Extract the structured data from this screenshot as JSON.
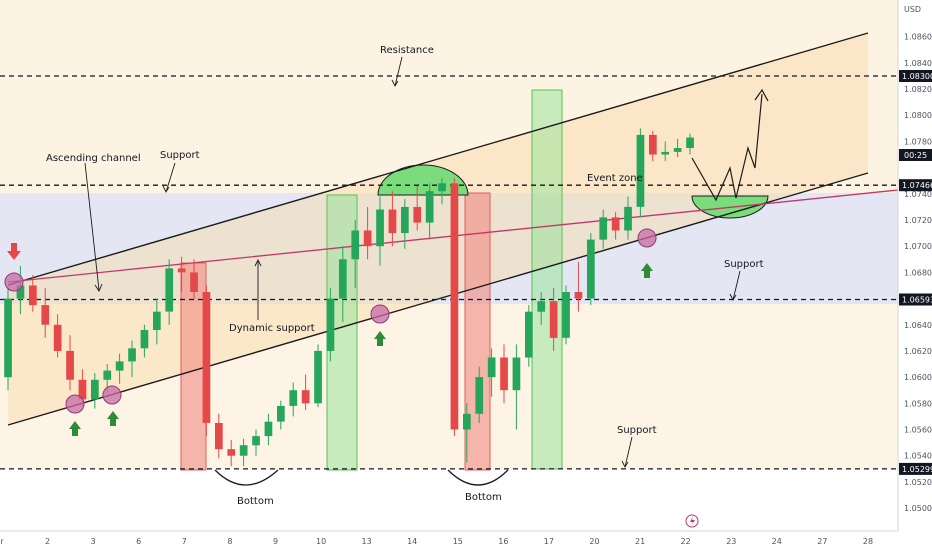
{
  "currency": "USD",
  "chart_data": {
    "type": "candlestick",
    "symbol_unit": "USD",
    "x_ticks": [
      "r",
      "2",
      "3",
      "6",
      "7",
      "8",
      "9",
      "10",
      "13",
      "14",
      "15",
      "16",
      "17",
      "20",
      "21",
      "22",
      "23",
      "24",
      "27",
      "28"
    ],
    "y_ticks": [
      "1.08600",
      "1.08400",
      "1.08200",
      "1.08000",
      "1.07800",
      "1.07400",
      "1.07200",
      "1.07000",
      "1.06800",
      "1.06400",
      "1.06200",
      "1.06000",
      "1.05800",
      "1.05600",
      "1.05400",
      "1.05200",
      "1.05000"
    ],
    "price_range": [
      1.04825,
      1.0888
    ],
    "key_levels": [
      {
        "price": 1.083,
        "label": "1.08300"
      },
      {
        "price": 1.07466,
        "label": "1.07466"
      },
      {
        "price": 1.06593,
        "label": "1.06593"
      },
      {
        "price": 1.05299,
        "label": "1.05299"
      }
    ],
    "current_price_label": "00:25",
    "current_price": 1.0769,
    "annotations": [
      "Resistance",
      "Support",
      "Ascending channel",
      "Event zone",
      "Support",
      "Dynamic support",
      "Support",
      "Bottom",
      "Bottom"
    ],
    "candles": [
      {
        "o": 1.06,
        "h": 1.0668,
        "l": 1.059,
        "c": 1.066
      },
      {
        "o": 1.066,
        "h": 1.0685,
        "l": 1.0648,
        "c": 1.067
      },
      {
        "o": 1.067,
        "h": 1.0678,
        "l": 1.065,
        "c": 1.0655
      },
      {
        "o": 1.0655,
        "h": 1.0668,
        "l": 1.063,
        "c": 1.064
      },
      {
        "o": 1.064,
        "h": 1.0648,
        "l": 1.0615,
        "c": 1.062
      },
      {
        "o": 1.062,
        "h": 1.0632,
        "l": 1.059,
        "c": 1.0598
      },
      {
        "o": 1.0598,
        "h": 1.0606,
        "l": 1.0578,
        "c": 1.0583
      },
      {
        "o": 1.0583,
        "h": 1.0603,
        "l": 1.0576,
        "c": 1.0598
      },
      {
        "o": 1.0598,
        "h": 1.061,
        "l": 1.0588,
        "c": 1.0605
      },
      {
        "o": 1.0605,
        "h": 1.0618,
        "l": 1.0595,
        "c": 1.0612
      },
      {
        "o": 1.0612,
        "h": 1.0628,
        "l": 1.06,
        "c": 1.0622
      },
      {
        "o": 1.0622,
        "h": 1.064,
        "l": 1.0615,
        "c": 1.0636
      },
      {
        "o": 1.0636,
        "h": 1.066,
        "l": 1.0625,
        "c": 1.065
      },
      {
        "o": 1.065,
        "h": 1.069,
        "l": 1.064,
        "c": 1.0683
      },
      {
        "o": 1.0683,
        "h": 1.0692,
        "l": 1.0665,
        "c": 1.068
      },
      {
        "o": 1.068,
        "h": 1.069,
        "l": 1.066,
        "c": 1.0665
      },
      {
        "o": 1.0665,
        "h": 1.067,
        "l": 1.0555,
        "c": 1.0565
      },
      {
        "o": 1.0565,
        "h": 1.0572,
        "l": 1.0538,
        "c": 1.0545
      },
      {
        "o": 1.0545,
        "h": 1.0552,
        "l": 1.0532,
        "c": 1.054
      },
      {
        "o": 1.054,
        "h": 1.0553,
        "l": 1.0532,
        "c": 1.0548
      },
      {
        "o": 1.0548,
        "h": 1.056,
        "l": 1.054,
        "c": 1.0555
      },
      {
        "o": 1.0555,
        "h": 1.0572,
        "l": 1.0548,
        "c": 1.0566
      },
      {
        "o": 1.0566,
        "h": 1.0582,
        "l": 1.056,
        "c": 1.0578
      },
      {
        "o": 1.0578,
        "h": 1.0596,
        "l": 1.057,
        "c": 1.059
      },
      {
        "o": 1.059,
        "h": 1.0602,
        "l": 1.0575,
        "c": 1.058
      },
      {
        "o": 1.058,
        "h": 1.0625,
        "l": 1.0577,
        "c": 1.062
      },
      {
        "o": 1.062,
        "h": 1.0668,
        "l": 1.0612,
        "c": 1.066
      },
      {
        "o": 1.066,
        "h": 1.07,
        "l": 1.0642,
        "c": 1.069
      },
      {
        "o": 1.069,
        "h": 1.072,
        "l": 1.0668,
        "c": 1.0712
      },
      {
        "o": 1.0712,
        "h": 1.073,
        "l": 1.069,
        "c": 1.07
      },
      {
        "o": 1.07,
        "h": 1.0738,
        "l": 1.0685,
        "c": 1.0728
      },
      {
        "o": 1.0728,
        "h": 1.0742,
        "l": 1.07,
        "c": 1.071
      },
      {
        "o": 1.071,
        "h": 1.0736,
        "l": 1.0698,
        "c": 1.073
      },
      {
        "o": 1.073,
        "h": 1.0746,
        "l": 1.0712,
        "c": 1.0718
      },
      {
        "o": 1.0718,
        "h": 1.0748,
        "l": 1.0705,
        "c": 1.0742
      },
      {
        "o": 1.0742,
        "h": 1.0752,
        "l": 1.0732,
        "c": 1.0748
      },
      {
        "o": 1.0748,
        "h": 1.0752,
        "l": 1.0555,
        "c": 1.056
      },
      {
        "o": 1.056,
        "h": 1.058,
        "l": 1.0535,
        "c": 1.0572
      },
      {
        "o": 1.0572,
        "h": 1.0608,
        "l": 1.0565,
        "c": 1.06
      },
      {
        "o": 1.06,
        "h": 1.0622,
        "l": 1.0585,
        "c": 1.0615
      },
      {
        "o": 1.0615,
        "h": 1.0625,
        "l": 1.058,
        "c": 1.059
      },
      {
        "o": 1.059,
        "h": 1.0625,
        "l": 1.056,
        "c": 1.0615
      },
      {
        "o": 1.0615,
        "h": 1.0655,
        "l": 1.0608,
        "c": 1.065
      },
      {
        "o": 1.065,
        "h": 1.0665,
        "l": 1.064,
        "c": 1.0658
      },
      {
        "o": 1.0658,
        "h": 1.0668,
        "l": 1.062,
        "c": 1.063
      },
      {
        "o": 1.063,
        "h": 1.067,
        "l": 1.0625,
        "c": 1.0665
      },
      {
        "o": 1.0665,
        "h": 1.0688,
        "l": 1.065,
        "c": 1.066
      },
      {
        "o": 1.066,
        "h": 1.071,
        "l": 1.0655,
        "c": 1.0705
      },
      {
        "o": 1.0705,
        "h": 1.0728,
        "l": 1.0698,
        "c": 1.0722
      },
      {
        "o": 1.0722,
        "h": 1.0726,
        "l": 1.0705,
        "c": 1.0712
      },
      {
        "o": 1.0712,
        "h": 1.0738,
        "l": 1.0705,
        "c": 1.073
      },
      {
        "o": 1.073,
        "h": 1.079,
        "l": 1.0722,
        "c": 1.0785
      },
      {
        "o": 1.0785,
        "h": 1.0788,
        "l": 1.0765,
        "c": 1.077
      },
      {
        "o": 1.077,
        "h": 1.078,
        "l": 1.0765,
        "c": 1.0772
      },
      {
        "o": 1.0772,
        "h": 1.0782,
        "l": 1.0768,
        "c": 1.0775
      },
      {
        "o": 1.0775,
        "h": 1.0786,
        "l": 1.077,
        "c": 1.0783
      }
    ]
  }
}
